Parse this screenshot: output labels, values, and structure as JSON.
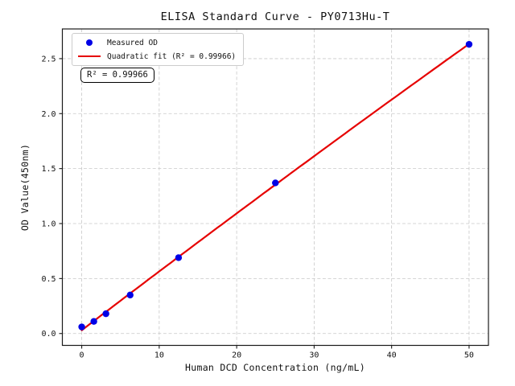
{
  "figure": {
    "title": "ELISA Standard Curve - PY0713Hu-T",
    "x_axis_label": "Human DCD Concentration (ng/mL)",
    "y_axis_label": "OD Value(450nm)",
    "annotation_r2": "R² = 0.99966"
  },
  "legend": {
    "position": "upper left",
    "items": [
      {
        "label": "Measured OD",
        "marker": "dot",
        "color": "#0000e6"
      },
      {
        "label": "Quadratic fit (R² = 0.99966)",
        "marker": "line",
        "color": "#e60000"
      }
    ]
  },
  "chart_data": {
    "type": "scatter",
    "title": "ELISA Standard Curve - PY0713Hu-T",
    "xlabel": "Human DCD Concentration (ng/mL)",
    "ylabel": "OD Value(450nm)",
    "series": [
      {
        "name": "Measured OD",
        "type": "scatter",
        "x": [
          0,
          1.5625,
          3.125,
          6.25,
          12.5,
          25,
          50
        ],
        "y": [
          0.06,
          0.11,
          0.18,
          0.35,
          0.69,
          1.37,
          2.63
        ],
        "color": "#0000e6",
        "marker_radius": 4.2
      },
      {
        "name": "Quadratic fit (R² = 0.99966)",
        "type": "line",
        "fit_coefficients": {
          "a": 0.0297,
          "b": 0.05384,
          "c": -3.53e-05
        },
        "x_range": [
          0,
          50
        ],
        "color": "#e60000",
        "line_width": 2.2
      }
    ],
    "r_squared": 0.99966,
    "x_ticks": [
      0,
      10,
      20,
      30,
      40,
      50
    ],
    "x_tick_labels": [
      "0",
      "10",
      "20",
      "30",
      "40",
      "50"
    ],
    "y_ticks": [
      0.0,
      0.5,
      1.0,
      1.5,
      2.0,
      2.5
    ],
    "y_tick_labels": [
      "0.0",
      "0.5",
      "1.0",
      "1.5",
      "2.0",
      "2.5"
    ],
    "xlim": [
      -2.5,
      52.5
    ],
    "ylim": [
      -0.108,
      2.77
    ],
    "grid": true,
    "grid_style": "dashed",
    "legend_position": "upper left"
  },
  "colors": {
    "background": "#ffffff",
    "points": "#0000e6",
    "fit_line": "#e60000",
    "grid": "#c8c8c8",
    "spine": "#1a1a1a",
    "text": "#111111",
    "legend_border": "#cccccc"
  }
}
